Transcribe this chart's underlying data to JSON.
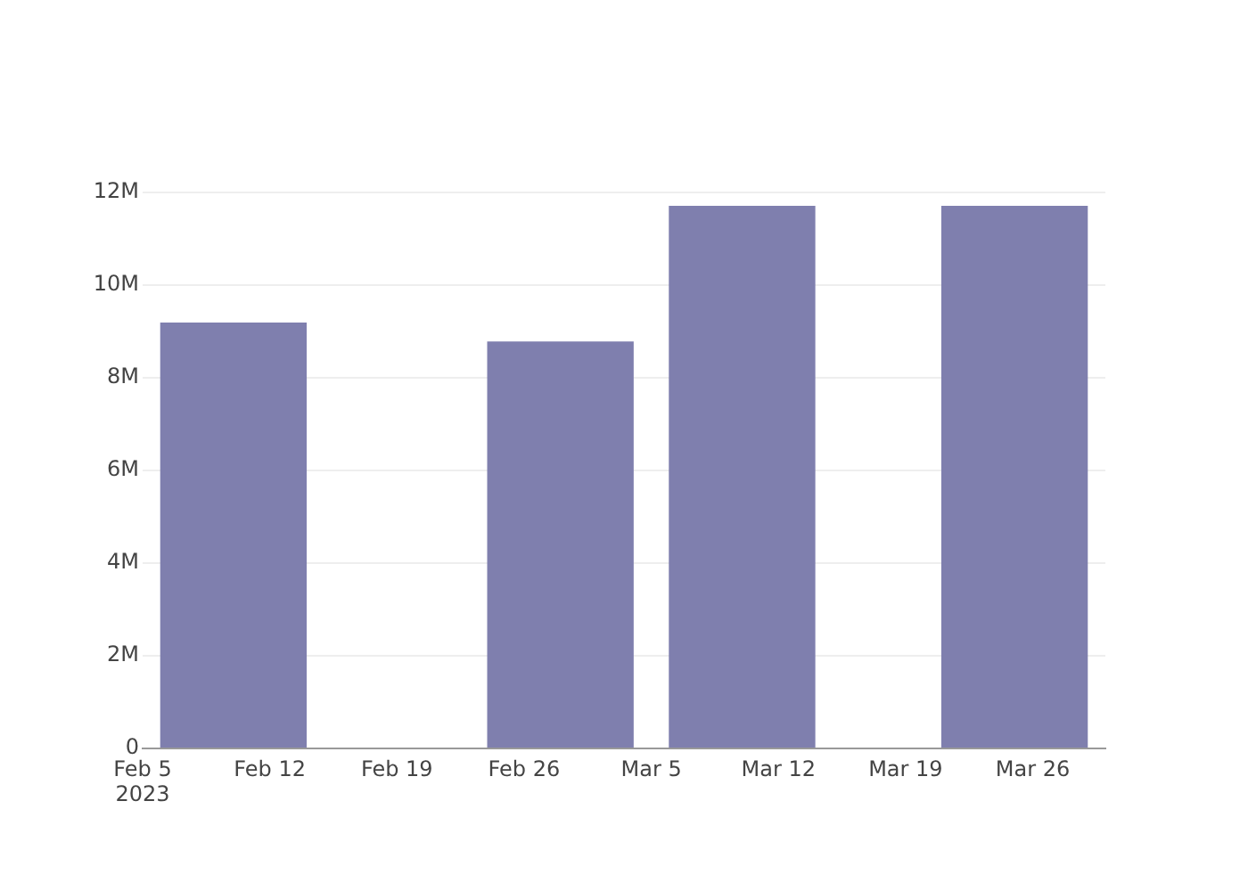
{
  "chart_data": {
    "type": "bar",
    "x": [
      "2023-02-10",
      "2023-02-28",
      "2023-03-10",
      "2023-03-25"
    ],
    "values": [
      9180000,
      8770000,
      11700000,
      11700000
    ],
    "color": "#7f7fae",
    "xlim": [
      "2023-02-05",
      "2023-03-30"
    ],
    "xticks": [
      {
        "value": "2023-02-05",
        "label": "Feb 5\n2023"
      },
      {
        "value": "2023-02-12",
        "label": "Feb 12"
      },
      {
        "value": "2023-02-19",
        "label": "Feb 19"
      },
      {
        "value": "2023-02-26",
        "label": "Feb 26"
      },
      {
        "value": "2023-03-05",
        "label": "Mar 5"
      },
      {
        "value": "2023-03-12",
        "label": "Mar 12"
      },
      {
        "value": "2023-03-19",
        "label": "Mar 19"
      },
      {
        "value": "2023-03-26",
        "label": "Mar 26"
      }
    ],
    "ylim": [
      0,
      12000000
    ],
    "yticks": [
      0,
      {
        "value": 2000000,
        "label": "2M"
      },
      {
        "value": 4000000,
        "label": "4M"
      },
      {
        "value": 6000000,
        "label": "6M"
      },
      {
        "value": 8000000,
        "label": "8M"
      },
      {
        "value": 10000000,
        "label": "10M"
      },
      {
        "value": 12000000,
        "label": "12M"
      }
    ],
    "grid": "y"
  }
}
